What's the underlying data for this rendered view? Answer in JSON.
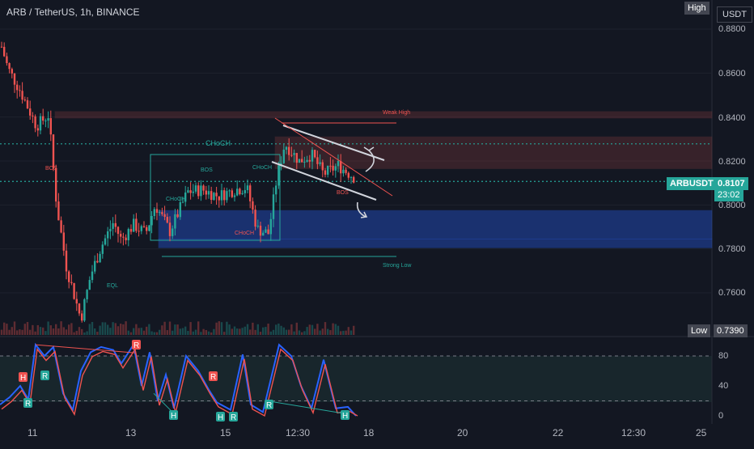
{
  "header": {
    "title": "ARB / TetherUS, 1h, BINANCE"
  },
  "badges": {
    "high": "High",
    "currency": "USDT",
    "low": "Low",
    "low_value": "0.7390"
  },
  "price_tag": {
    "symbol": "ARBUSDT",
    "price": "0.8107",
    "countdown": "23:02"
  },
  "chart_data": {
    "type": "candlestick",
    "price_axis": {
      "ticks": [
        "0.8800",
        "0.8600",
        "0.8400",
        "0.8200",
        "0.8000",
        "0.7800",
        "0.7600"
      ],
      "range": [
        0.739,
        0.888
      ]
    },
    "time_axis": {
      "ticks": [
        "11",
        "13",
        "15",
        "12:30",
        "18",
        "20",
        "22",
        "12:30",
        "25"
      ]
    },
    "oscillator": {
      "ticks": [
        "80",
        "40",
        "0"
      ],
      "levels": [
        80,
        20
      ],
      "range": [
        0,
        100
      ]
    },
    "zones": [
      {
        "name": "weak-high-zone",
        "top": 0.8425,
        "bottom": 0.8395,
        "color": "#b84a4a"
      },
      {
        "name": "supply-zone",
        "top": 0.831,
        "bottom": 0.8165,
        "color": "#b84a4a"
      },
      {
        "name": "demand-zone",
        "top": 0.7975,
        "bottom": 0.7845,
        "color": "#2962ff"
      },
      {
        "name": "demand-zone-lower",
        "top": 0.7845,
        "bottom": 0.7805,
        "color": "#2962ff"
      }
    ],
    "levels": [
      {
        "name": "choch-level",
        "price": 0.8278,
        "color": "#26a69a"
      },
      {
        "name": "current-price-level",
        "price": 0.8107,
        "color": "#26a69a"
      }
    ],
    "annotations": [
      {
        "text": "Weak High",
        "color": "#ef5350"
      },
      {
        "text": "Strong Low",
        "color": "#26a69a"
      },
      {
        "text": "CHoCH",
        "color": "#26a69a"
      },
      {
        "text": "CHoCH",
        "color": "#26a69a"
      },
      {
        "text": "CHoCH",
        "color": "#26a69a"
      },
      {
        "text": "CHoCH",
        "color": "#ef5350"
      },
      {
        "text": "BOS",
        "color": "#ef5350"
      },
      {
        "text": "BOS",
        "color": "#26a69a"
      },
      {
        "text": "BOS",
        "color": "#ef5350"
      },
      {
        "text": "EQL",
        "color": "#26a69a"
      }
    ],
    "oscillator_markers": [
      {
        "text": "H",
        "color": "#ef5350"
      },
      {
        "text": "R",
        "color": "#26a69a"
      },
      {
        "text": "R",
        "color": "#26a69a"
      },
      {
        "text": "R",
        "color": "#ef5350"
      },
      {
        "text": "R",
        "color": "#ef5350"
      },
      {
        "text": "H",
        "color": "#26a69a"
      },
      {
        "text": "H",
        "color": "#26a69a"
      },
      {
        "text": "R",
        "color": "#26a69a"
      },
      {
        "text": "R",
        "color": "#26a69a"
      },
      {
        "text": "H",
        "color": "#26a69a"
      }
    ],
    "colors": {
      "up": "#26a69a",
      "down": "#ef5350",
      "osc_line": "#ef5350",
      "osc_line2": "#2962ff"
    }
  }
}
